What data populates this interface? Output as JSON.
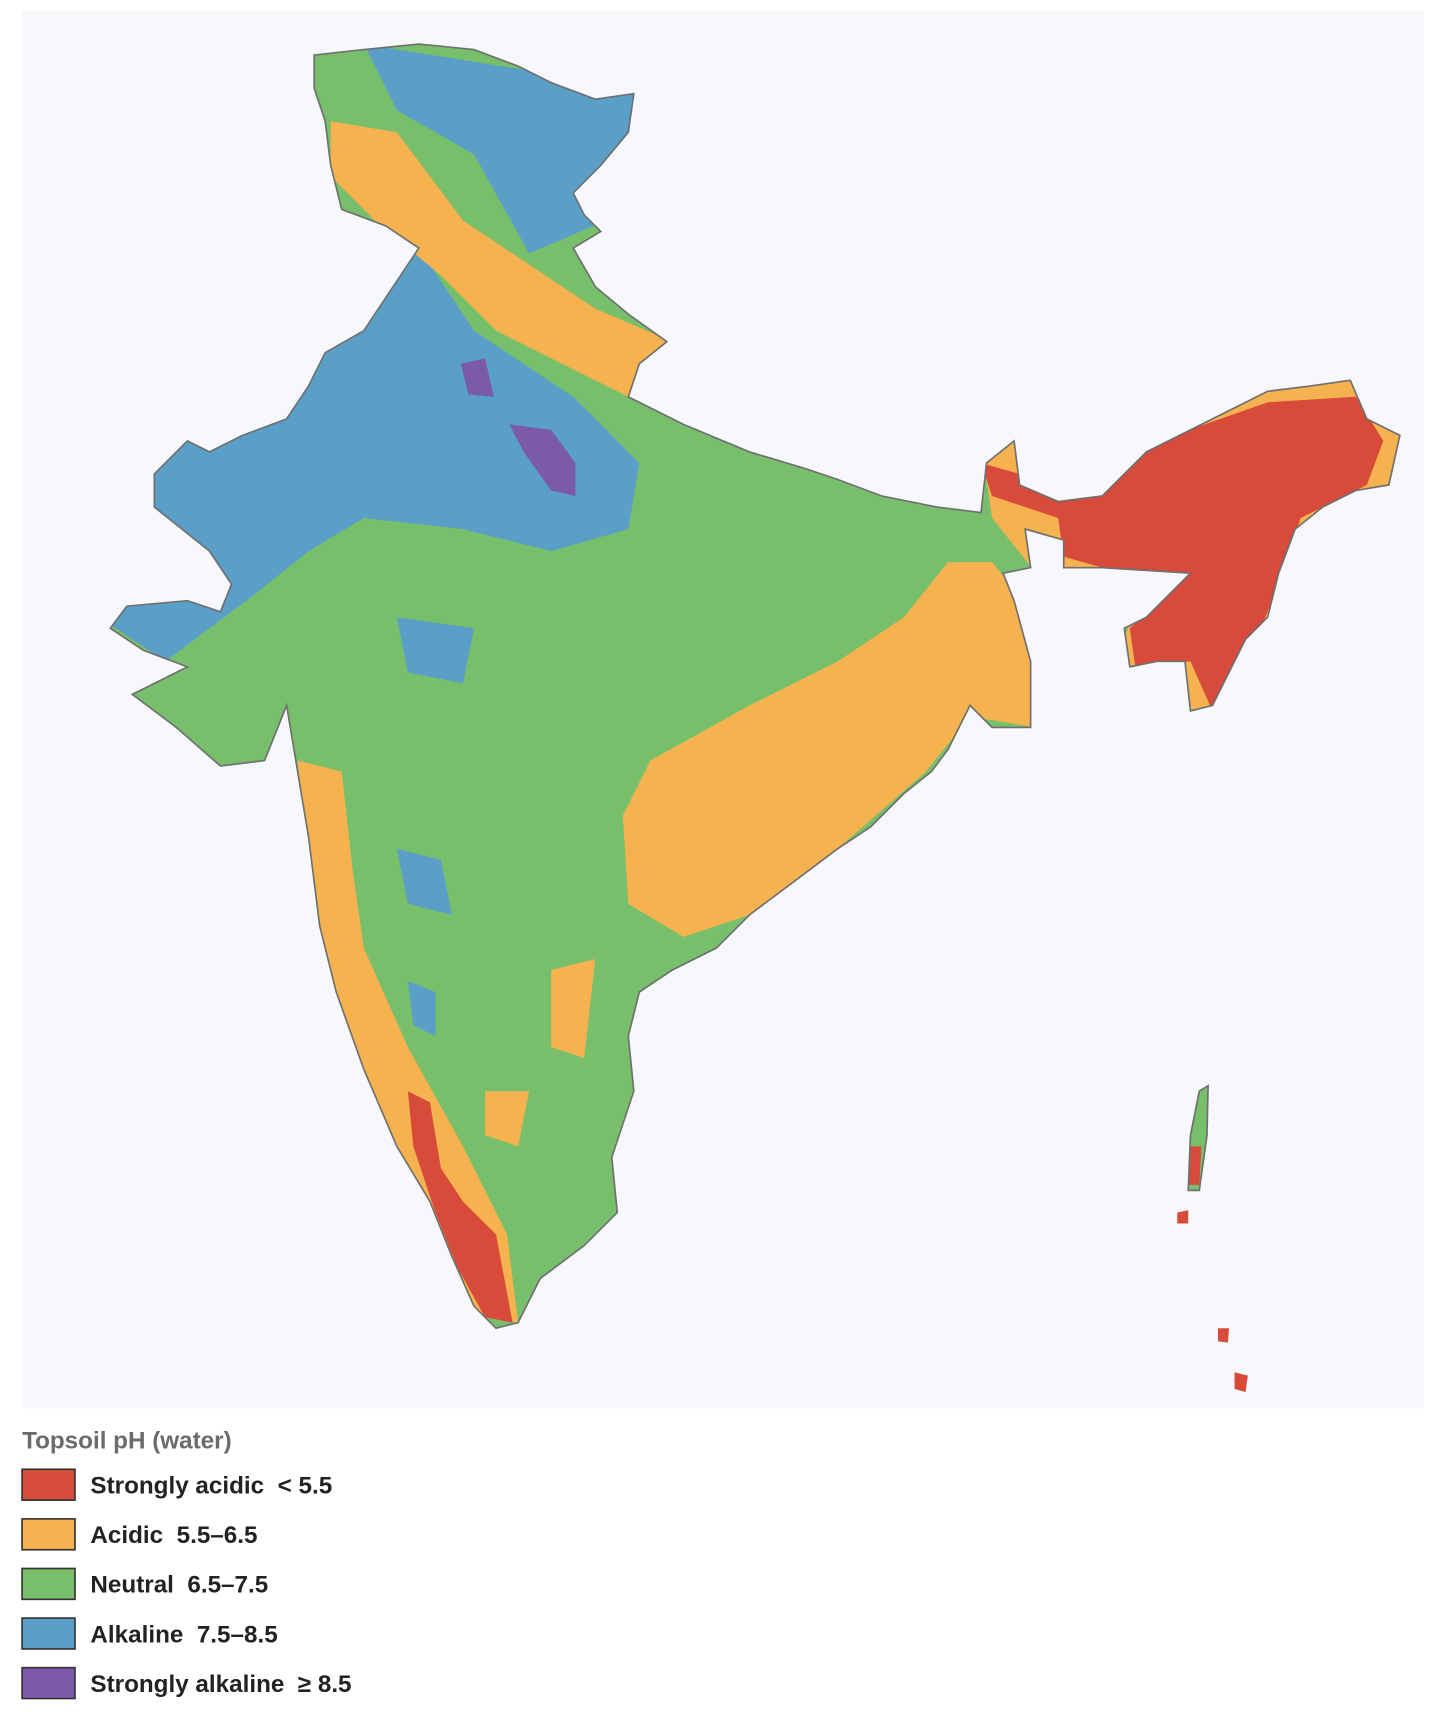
{
  "legend": {
    "title": "Topsoil pH (water)",
    "items": [
      {
        "label": "Strongly acidic  < 5.5",
        "color": "#d84a3a"
      },
      {
        "label": "Acidic  5.5–6.5",
        "color": "#f5b24f"
      },
      {
        "label": "Neutral  6.5–7.5",
        "color": "#77bf6a"
      },
      {
        "label": "Alkaline  7.5–8.5",
        "color": "#5a9fc8"
      },
      {
        "label": "Strongly alkaline  ≥ 8.5",
        "color": "#7b5aac"
      }
    ]
  }
}
